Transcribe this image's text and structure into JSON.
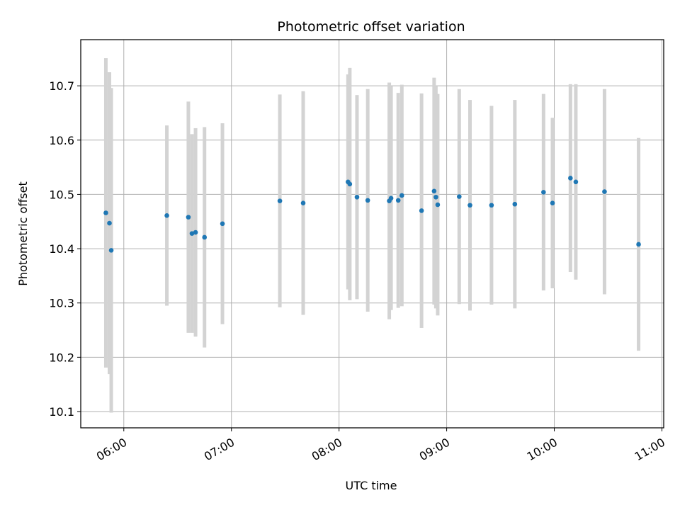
{
  "chart_data": {
    "type": "scatter",
    "title": "Photometric offset variation",
    "xlabel": "UTC time",
    "ylabel": "Photometric offset",
    "xlim": [
      "05:36",
      "11:01"
    ],
    "ylim": [
      10.07,
      10.785
    ],
    "x_ticks": [
      "06:00",
      "07:00",
      "08:00",
      "09:00",
      "10:00",
      "11:00"
    ],
    "y_ticks": [
      10.1,
      10.2,
      10.3,
      10.4,
      10.5,
      10.6,
      10.7
    ],
    "grid": true,
    "point_color": "#1f77b4",
    "errorbar_color": "#d3d3d3",
    "points": [
      {
        "x": "05:50",
        "y": 10.466,
        "err": 0.285
      },
      {
        "x": "05:52",
        "y": 10.447,
        "err": 0.278
      },
      {
        "x": "05:53",
        "y": 10.397,
        "err": 0.299
      },
      {
        "x": "06:24",
        "y": 10.461,
        "err": 0.166
      },
      {
        "x": "06:36",
        "y": 10.458,
        "err": 0.213
      },
      {
        "x": "06:38",
        "y": 10.428,
        "err": 0.183
      },
      {
        "x": "06:40",
        "y": 10.43,
        "err": 0.192
      },
      {
        "x": "06:45",
        "y": 10.421,
        "err": 0.203
      },
      {
        "x": "06:55",
        "y": 10.446,
        "err": 0.185
      },
      {
        "x": "07:27",
        "y": 10.488,
        "err": 0.196
      },
      {
        "x": "07:40",
        "y": 10.484,
        "err": 0.206
      },
      {
        "x": "08:05",
        "y": 10.523,
        "err": 0.198
      },
      {
        "x": "08:06",
        "y": 10.519,
        "err": 0.214
      },
      {
        "x": "08:10",
        "y": 10.495,
        "err": 0.188
      },
      {
        "x": "08:16",
        "y": 10.489,
        "err": 0.205
      },
      {
        "x": "08:28",
        "y": 10.488,
        "err": 0.218
      },
      {
        "x": "08:29",
        "y": 10.493,
        "err": 0.206
      },
      {
        "x": "08:33",
        "y": 10.489,
        "err": 0.198
      },
      {
        "x": "08:35",
        "y": 10.498,
        "err": 0.204
      },
      {
        "x": "08:46",
        "y": 10.47,
        "err": 0.216
      },
      {
        "x": "08:53",
        "y": 10.506,
        "err": 0.209
      },
      {
        "x": "08:54",
        "y": 10.495,
        "err": 0.205
      },
      {
        "x": "08:55",
        "y": 10.481,
        "err": 0.204
      },
      {
        "x": "09:07",
        "y": 10.496,
        "err": 0.198
      },
      {
        "x": "09:13",
        "y": 10.48,
        "err": 0.194
      },
      {
        "x": "09:25",
        "y": 10.48,
        "err": 0.183
      },
      {
        "x": "09:38",
        "y": 10.482,
        "err": 0.192
      },
      {
        "x": "09:54",
        "y": 10.504,
        "err": 0.181
      },
      {
        "x": "09:59",
        "y": 10.484,
        "err": 0.157
      },
      {
        "x": "10:09",
        "y": 10.53,
        "err": 0.173
      },
      {
        "x": "10:12",
        "y": 10.523,
        "err": 0.18
      },
      {
        "x": "10:28",
        "y": 10.505,
        "err": 0.189
      },
      {
        "x": "10:47",
        "y": 10.408,
        "err": 0.196
      }
    ]
  }
}
